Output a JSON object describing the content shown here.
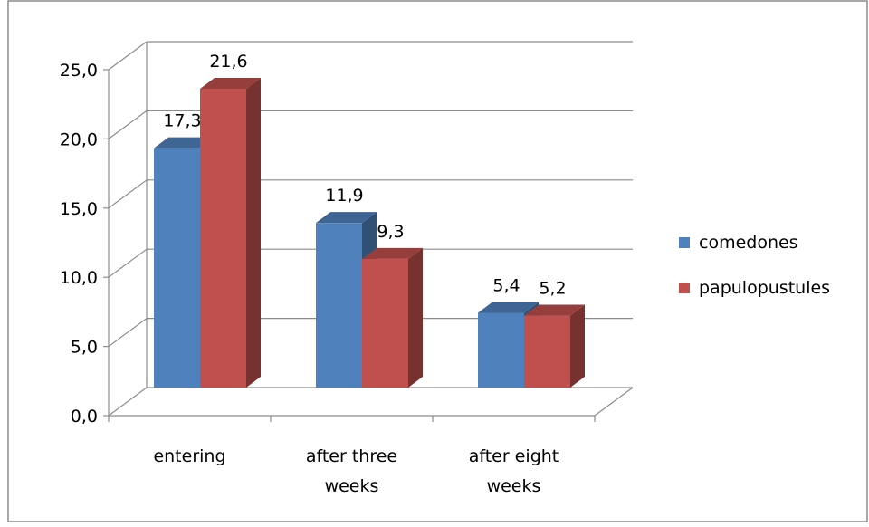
{
  "chart_data": {
    "type": "bar",
    "view": "3d-clustered-column",
    "categories": [
      "entering",
      "after three weeks",
      "after eight weeks"
    ],
    "category_lines": [
      [
        "entering"
      ],
      [
        "after three",
        "weeks"
      ],
      [
        "after eight",
        "weeks"
      ]
    ],
    "series": [
      {
        "name": "comedones",
        "values": [
          17.3,
          11.9,
          5.4
        ],
        "labels": [
          "17,3",
          "11,9",
          "5,4"
        ],
        "color": "#4F81BD"
      },
      {
        "name": "papulopustules",
        "values": [
          21.6,
          9.3,
          5.2
        ],
        "labels": [
          "21,6",
          "9,3",
          "5,2"
        ],
        "color": "#C0504D"
      }
    ],
    "yticks": [
      0,
      5,
      10,
      15,
      20,
      25
    ],
    "ytick_labels": [
      "0,0",
      "5,0",
      "10,0",
      "15,0",
      "20,0",
      "25,0"
    ],
    "ylim": [
      0,
      25
    ],
    "grid": true,
    "legend": "right",
    "title": "",
    "xlabel": "",
    "ylabel": ""
  }
}
